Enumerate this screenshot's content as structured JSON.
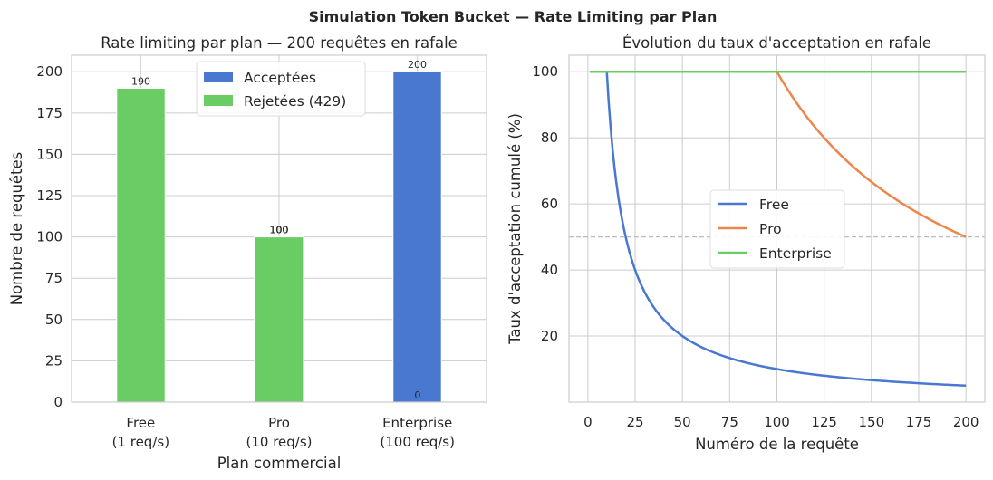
{
  "figure": {
    "suptitle": "Simulation Token Bucket — Rate Limiting par Plan"
  },
  "chart_data": [
    {
      "type": "bar",
      "title": "Rate limiting par plan — 200 requêtes en rafale",
      "xlabel": "Plan commercial",
      "ylabel": "Nombre de requêtes",
      "categories": [
        {
          "line1": "Free",
          "line2": "(1 req/s)"
        },
        {
          "line1": "Pro",
          "line2": "(10 req/s)"
        },
        {
          "line1": "Enterprise",
          "line2": "(100 req/s)"
        }
      ],
      "series": [
        {
          "name": "Acceptées",
          "color": "#4878d0",
          "values": [
            10,
            100,
            200
          ]
        },
        {
          "name": "Rejetées (429)",
          "color": "#6acc64",
          "values": [
            190,
            100,
            0
          ]
        }
      ],
      "ylim": [
        0,
        210
      ],
      "yticks": [
        0,
        25,
        50,
        75,
        100,
        125,
        150,
        175,
        200
      ],
      "legend_position": "top-center",
      "grid": true
    },
    {
      "type": "line",
      "title": "Évolution du taux d'acceptation en rafale",
      "xlabel": "Numéro de la requête",
      "ylabel": "Taux d'acceptation cumulé (%)",
      "xlim": [
        -10,
        210
      ],
      "ylim": [
        0,
        105
      ],
      "xticks": [
        0,
        25,
        50,
        75,
        100,
        125,
        150,
        175,
        200
      ],
      "yticks": [
        20,
        40,
        60,
        80,
        100
      ],
      "reference_line": {
        "y": 50,
        "style": "dashed",
        "color": "#bbbbbb"
      },
      "series": [
        {
          "name": "Free",
          "color": "#4878d0",
          "accepted": 10,
          "n_requests": 200
        },
        {
          "name": "Pro",
          "color": "#ee854a",
          "accepted": 100,
          "n_requests": 200
        },
        {
          "name": "Enterprise",
          "color": "#6acc64",
          "accepted": 200,
          "n_requests": 200
        }
      ],
      "legend_position": "center",
      "grid": true
    }
  ]
}
